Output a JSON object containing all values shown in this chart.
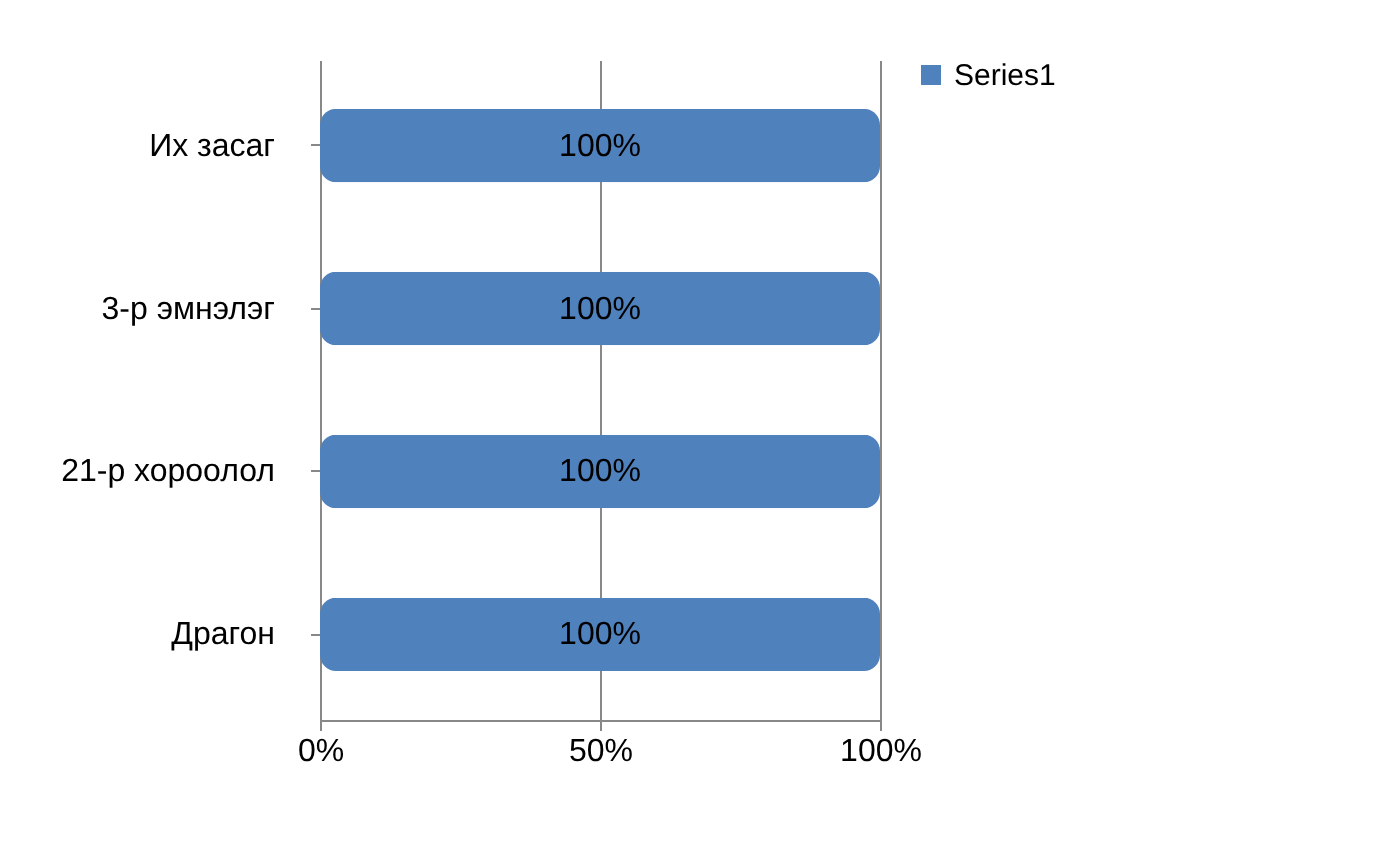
{
  "chart_data": {
    "type": "bar",
    "orientation": "horizontal",
    "categories": [
      "Их засаг",
      "3-р эмнэлэг",
      "21-р хороолол",
      "Драгон"
    ],
    "series": [
      {
        "name": "Series1",
        "color": "#4f81bd",
        "values": [
          100,
          100,
          100,
          100
        ],
        "value_labels": [
          "100%",
          "100%",
          "100%",
          "100%"
        ]
      }
    ],
    "xlim": [
      0,
      100
    ],
    "xticks": [
      {
        "value": 0,
        "label": "0%"
      },
      {
        "value": 50,
        "label": "50%"
      },
      {
        "value": 100,
        "label": "100%"
      }
    ],
    "grid": "x",
    "legend": "right"
  }
}
